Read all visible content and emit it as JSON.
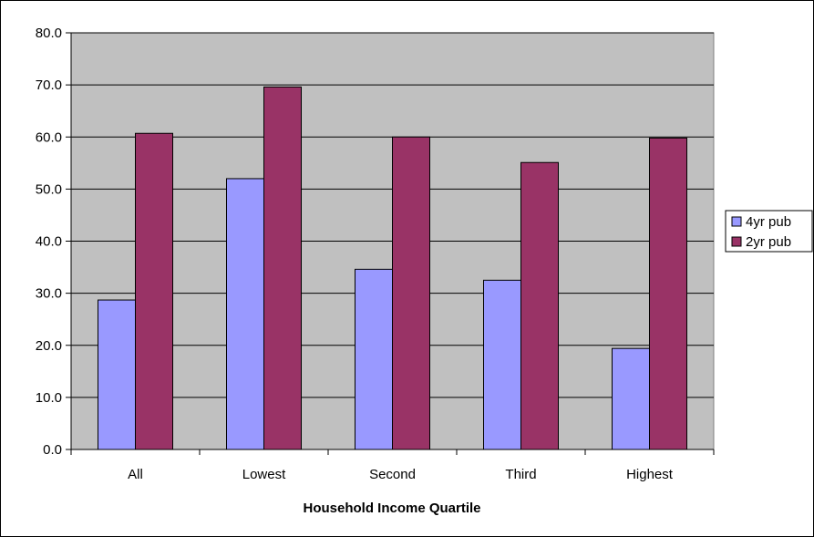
{
  "chart_data": {
    "type": "bar",
    "title": "",
    "xlabel": "Household Income Quartile",
    "ylabel": "",
    "categories": [
      "All",
      "Lowest",
      "Second",
      "Third",
      "Highest"
    ],
    "series": [
      {
        "name": "4yr pub",
        "color": "#9999ff",
        "values": [
          28.7,
          52.0,
          34.6,
          32.5,
          19.4
        ]
      },
      {
        "name": "2yr pub",
        "color": "#993366",
        "values": [
          60.7,
          69.6,
          60.0,
          55.1,
          59.8
        ]
      }
    ],
    "ylim": [
      0,
      80
    ],
    "yticks": [
      "0.0",
      "10.0",
      "20.0",
      "30.0",
      "40.0",
      "50.0",
      "60.0",
      "70.0",
      "80.0"
    ],
    "grid": true,
    "plot_background": "#c0c0c0",
    "legend_position": "right"
  }
}
